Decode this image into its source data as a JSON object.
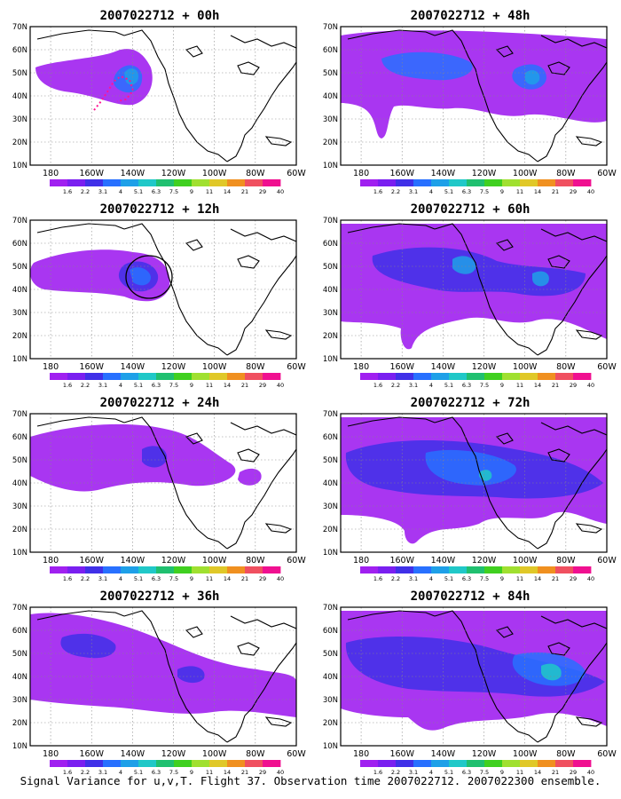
{
  "map": {
    "lat_labels": [
      "70N",
      "60N",
      "50N",
      "40N",
      "30N",
      "20N",
      "10N"
    ],
    "lon_labels": [
      "180",
      "160W",
      "140W",
      "120W",
      "100W",
      "80W",
      "60W"
    ],
    "colorbar": {
      "labels": [
        "1.6",
        "2.2",
        "3.1",
        "4",
        "5.1",
        "6.3",
        "7.5",
        "9",
        "11",
        "14",
        "21",
        "29",
        "40"
      ],
      "colors": [
        "#a020f0",
        "#7a1ff0",
        "#4030e8",
        "#2870ff",
        "#1ea0e8",
        "#20c8c8",
        "#20c070",
        "#40d020",
        "#a0e030",
        "#e0c828",
        "#f09020",
        "#f05060",
        "#f01090"
      ]
    }
  },
  "panels": [
    {
      "title": "2007022712 + 00h"
    },
    {
      "title": "2007022712 + 48h"
    },
    {
      "title": "2007022712 + 12h"
    },
    {
      "title": "2007022712 + 60h"
    },
    {
      "title": "2007022712 + 24h"
    },
    {
      "title": "2007022712 + 72h"
    },
    {
      "title": "2007022712 + 36h"
    },
    {
      "title": "2007022712 + 84h"
    }
  ],
  "footer": "Signal Variance for u,v,T. Flight 37. Observation time 2007022712. 2007022300 ensemble."
}
